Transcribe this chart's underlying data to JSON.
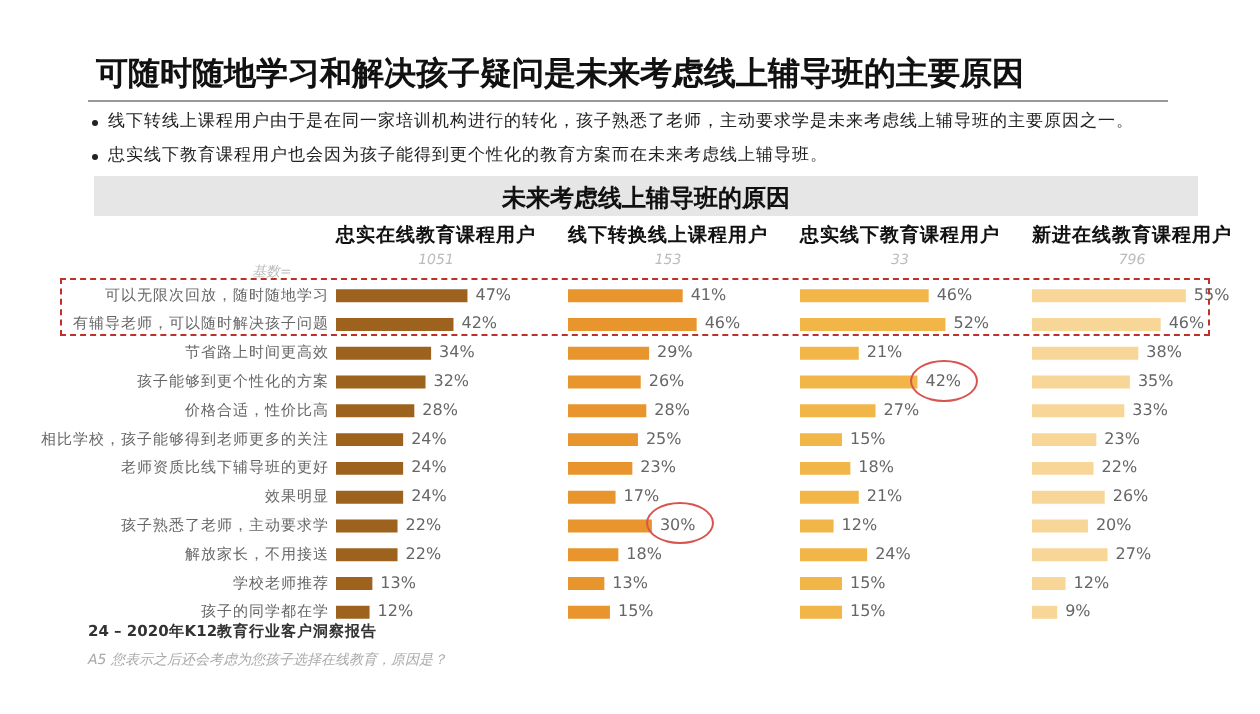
{
  "chart_data": [
    {
      "type": "bar",
      "orientation": "horizontal",
      "title": "忠实在线教育课程用户",
      "subtitle": "1051",
      "tick_labels": "y",
      "annotations": [
        "可随时随地学习和解决孩子疑问是未来考虑线上辅导班的主要原因",
        "线下转线上课程用户由于是在同一家培训机构进行的转化，孩子熟悉了老师，主动要求学是未来考虑线上辅导班的主要原因之一。",
        "忠实线下教育课程用户也会因为孩子能得到更个性化的教育方案而在未来考虑线上辅导班。",
        "未来考虑线上辅导班的原因",
        "基数=",
        "24 – 2020年K12教育行业客户洞察报告",
        "A5 您表示之后还会考虑为您孩子选择在线教育，原因是？"
      ],
      "categories": [
        "可以无限次回放，随时随地学习",
        "有辅导老师，可以随时解决孩子问题",
        "节省路上时间更高效",
        "孩子能够到更个性化的方案",
        "价格合适，性价比高",
        "相比学校，孩子能够得到老师更多的关注",
        "老师资质比线下辅导班的更好",
        "效果明显",
        "孩子熟悉了老师，主动要求学",
        "解放家长，不用接送",
        "学校老师推荐",
        "孩子的同学都在学"
      ],
      "values": [
        47,
        42,
        34,
        32,
        28,
        24,
        24,
        24,
        22,
        22,
        13,
        12
      ],
      "value_labels": [
        "47%",
        "42%",
        "34%",
        "32%",
        "28%",
        "24%",
        "24%",
        "24%",
        "22%",
        "22%",
        "13%",
        "12%"
      ],
      "color": "#9e621f"
    },
    {
      "type": "bar",
      "orientation": "horizontal",
      "title": "线下转换线上课程用户",
      "subtitle": "153",
      "tick_labels": false,
      "values": [
        41,
        46,
        29,
        26,
        28,
        25,
        23,
        17,
        30,
        18,
        13,
        15
      ],
      "value_labels": [
        "41%",
        "46%",
        "29%",
        "26%",
        "28%",
        "25%",
        "23%",
        "17%",
        "30%",
        "18%",
        "13%",
        "15%"
      ],
      "color": "#e8952e"
    },
    {
      "type": "bar",
      "orientation": "horizontal",
      "title": "忠实线下教育课程用户",
      "subtitle": "33",
      "tick_labels": false,
      "values": [
        46,
        52,
        21,
        42,
        27,
        15,
        18,
        21,
        12,
        24,
        15,
        15
      ],
      "value_labels": [
        "46%",
        "52%",
        "21%",
        "42%",
        "27%",
        "15%",
        "18%",
        "21%",
        "12%",
        "24%",
        "15%",
        "15%"
      ],
      "color": "#f2b548"
    },
    {
      "type": "bar",
      "orientation": "horizontal",
      "title": "新进在线教育课程用户",
      "subtitle": "796",
      "tick_labels": false,
      "values": [
        55,
        46,
        38,
        35,
        33,
        23,
        22,
        26,
        20,
        27,
        12,
        9
      ],
      "value_labels": [
        "55%",
        "46%",
        "38%",
        "35%",
        "33%",
        "23%",
        "22%",
        "26%",
        "20%",
        "27%",
        "12%",
        "9%"
      ],
      "color": "#f8d698"
    }
  ]
}
